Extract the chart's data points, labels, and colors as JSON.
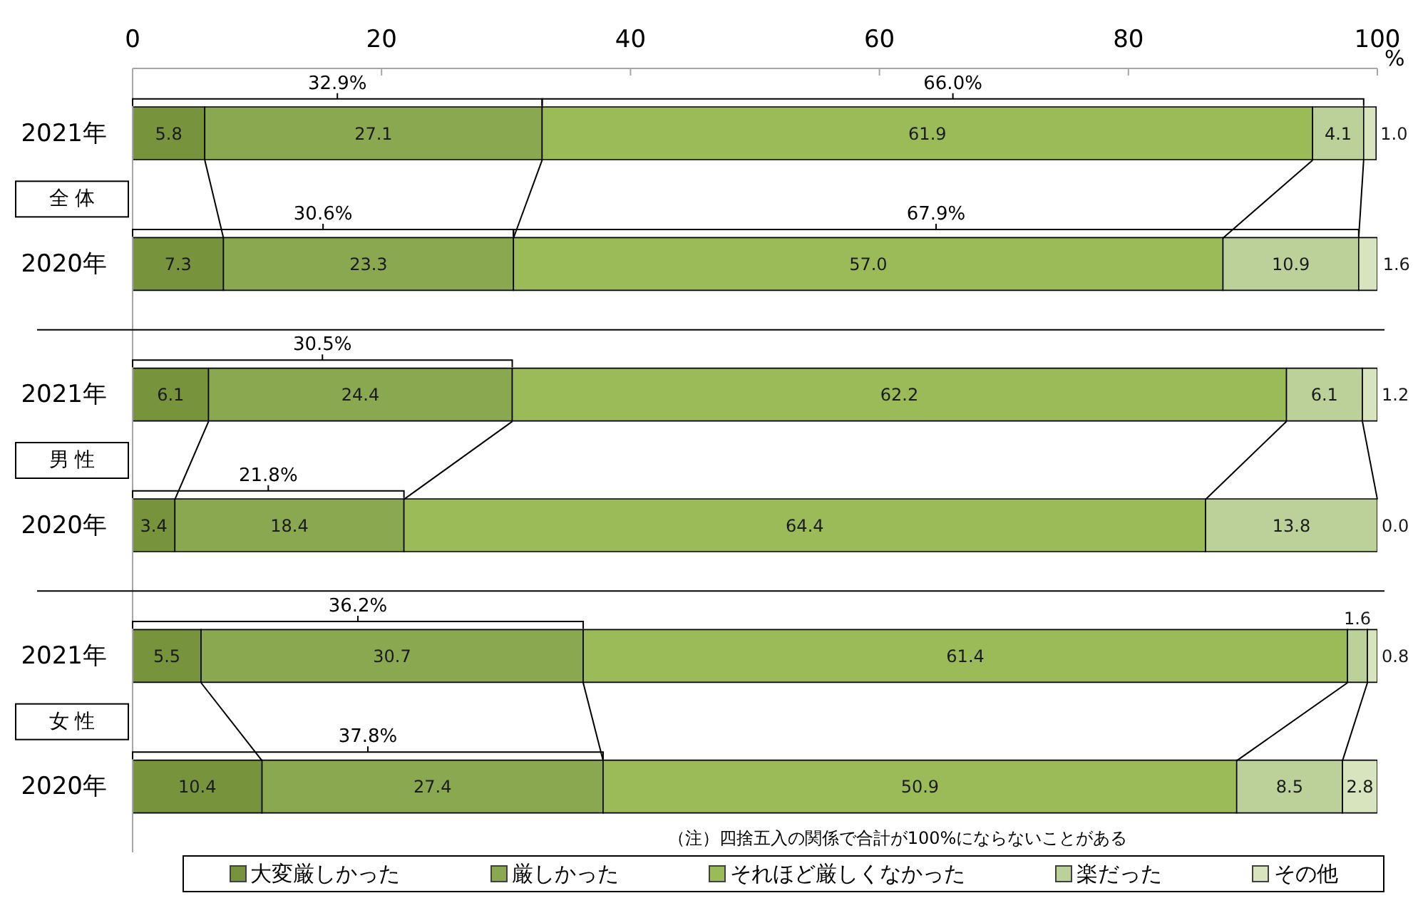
{
  "chart_data": {
    "type": "bar",
    "orientation": "horizontal",
    "stacked": true,
    "categories": [
      "2021年",
      "2020年",
      "2021年",
      "2020年",
      "2021年",
      "2020年"
    ],
    "series": [
      {
        "name": "大変厳しかった",
        "color": "#77933c",
        "values": [
          5.8,
          7.3,
          6.1,
          3.4,
          5.5,
          10.4
        ],
        "value_labels": [
          "5.8",
          "7.3",
          "6.1",
          "3.4",
          "5.5",
          "10.4"
        ]
      },
      {
        "name": "厳しかった",
        "color": "#8aa84f",
        "values": [
          27.1,
          23.3,
          24.4,
          18.4,
          30.7,
          27.4
        ],
        "value_labels": [
          "27.1",
          "23.3",
          "24.4",
          "18.4",
          "30.7",
          "27.4"
        ]
      },
      {
        "name": "それほど厳しくなかった",
        "color": "#9bbb59",
        "values": [
          61.9,
          57.0,
          62.2,
          64.4,
          61.4,
          50.9
        ],
        "value_labels": [
          "61.9",
          "57.0",
          "62.2",
          "64.4",
          "61.4",
          "50.9"
        ]
      },
      {
        "name": "楽だった",
        "color": "#bcd09a",
        "values": [
          4.1,
          10.9,
          6.1,
          13.8,
          1.6,
          8.5
        ],
        "value_labels": [
          "4.1",
          "10.9",
          "6.1",
          "13.8",
          "1.6",
          "8.5"
        ]
      },
      {
        "name": "その他",
        "color": "#d7e4bd",
        "values": [
          1.0,
          1.6,
          1.2,
          0.0,
          0.8,
          2.8
        ],
        "value_labels": [
          "1.0",
          "1.6",
          "1.2",
          "0.0",
          "0.8",
          "2.8"
        ]
      }
    ],
    "xlabel": "%",
    "xlim": [
      0,
      100
    ],
    "xticks": [
      0,
      20,
      40,
      60,
      80,
      100
    ],
    "legend": "bottom",
    "annotations": [
      "32.9%",
      "66.0%",
      "30.6%",
      "67.9%",
      "30.5%",
      "21.8%",
      "36.2%",
      "37.8%",
      "全 体",
      "男 性",
      "女 性",
      "（注）四捨五入の関係で合計が100%にならないことがある"
    ]
  }
}
